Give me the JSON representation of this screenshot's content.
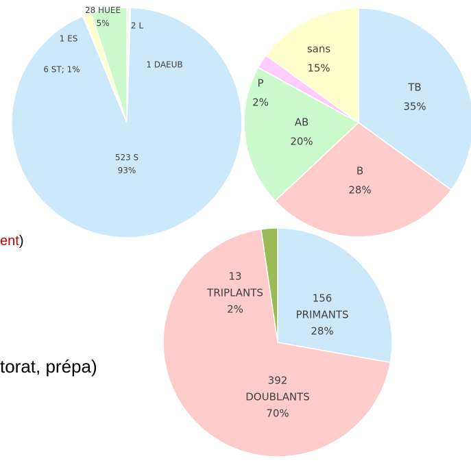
{
  "chart_data": [
    {
      "type": "pie",
      "values": [
        2,
        1,
        523,
        1,
        6,
        28
      ],
      "value_labels": [
        [
          "2 L"
        ],
        [
          "1 DAEUB"
        ],
        [
          "523 S",
          "93%"
        ],
        [
          "1 ES"
        ],
        [
          "6 ST; 1%"
        ],
        [
          "28 HUEE",
          "5%"
        ]
      ],
      "colors": [
        "#f4f4f4",
        "#eef6ff",
        "#cce9fb",
        "#e3eefa",
        "#ffffcc",
        "#ccfacc"
      ]
    },
    {
      "type": "pie",
      "values": [
        35,
        28,
        20,
        2,
        15
      ],
      "value_labels": [
        [
          "TB",
          "35%"
        ],
        [
          "B",
          "28%"
        ],
        [
          "AB",
          "20%"
        ],
        [
          "P",
          "2%"
        ],
        [
          "sans",
          "15%"
        ]
      ],
      "colors": [
        "#cce9fb",
        "#ffcccc",
        "#ccfacc",
        "#ffccff",
        "#ffffcc"
      ]
    },
    {
      "type": "pie",
      "values": [
        156,
        392,
        13
      ],
      "value_labels": [
        [
          "156",
          "PRIMANTS",
          "28%"
        ],
        [
          "392",
          "DOUBLANTS",
          "70%"
        ],
        [
          "13",
          "TRIPLANTS",
          "2%"
        ]
      ],
      "colors": [
        "#cce9fb",
        "#ffcccc",
        "#9bbb59"
      ]
    }
  ],
  "texts": {
    "line1": [
      "ent",
      ")"
    ],
    "line2": "torat, prépa)"
  }
}
